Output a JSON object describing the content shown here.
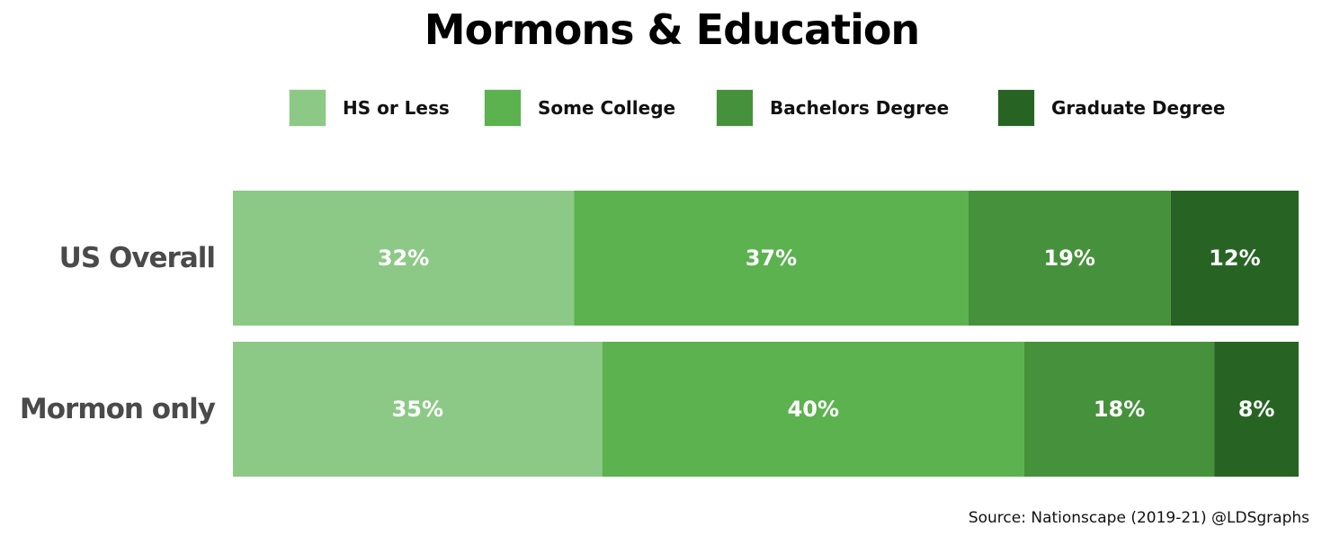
{
  "chart_data": {
    "type": "bar",
    "stacked": true,
    "orientation": "horizontal",
    "percent": true,
    "title": "Mormons & Education",
    "categories": [
      "US Overall",
      "Mormon only"
    ],
    "series": [
      {
        "name": "HS or Less",
        "color": "#8cc986",
        "values": [
          32,
          35
        ],
        "labels": [
          "32%",
          "35%"
        ]
      },
      {
        "name": "Some College",
        "color": "#5bb24f",
        "values": [
          37,
          40
        ],
        "labels": [
          "37%",
          "40%"
        ]
      },
      {
        "name": "Bachelors Degree",
        "color": "#46913b",
        "values": [
          19,
          18
        ],
        "labels": [
          "19%",
          "18%"
        ]
      },
      {
        "name": "Graduate Degree",
        "color": "#276424",
        "values": [
          12,
          8
        ],
        "labels": [
          "12%",
          "8%"
        ]
      }
    ],
    "legend_position": "top",
    "grid": false,
    "source": "Source: Nationscape (2019-21) @LDSgraphs"
  }
}
